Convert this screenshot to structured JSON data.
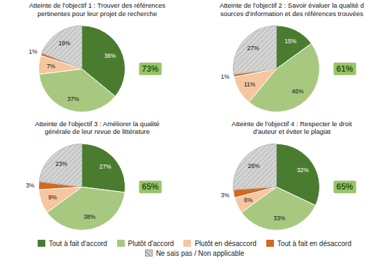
{
  "chart_data": [
    {
      "type": "pie",
      "title": "Atteinte de l'objectif 1 : Trouver des références\npertinentes pour leur projet de recherche",
      "categories": [
        "Tout à fait d'accord",
        "Plutôt d'accord",
        "Plutôt en désaccord",
        "Tout à fait en désaccord",
        "Ne sais pas / Non applicable"
      ],
      "values": [
        36,
        37,
        7,
        1,
        19
      ],
      "value_labels": [
        "36%",
        "37%",
        "7%",
        "1%",
        "19%"
      ],
      "colors": [
        "#4a7c2f",
        "#a8c880",
        "#f5c6a0",
        "#d2691e",
        "#d4d4d4"
      ],
      "data_labels": true,
      "legend": "bottom",
      "annotations": [
        {
          "text": "73%",
          "color": "#2d5a0e"
        }
      ]
    },
    {
      "type": "pie",
      "title": "Atteinte de l'objectif 2 : Savoir évaluer la qualité d\nsources d'information et des références trouvées",
      "categories": [
        "Tout à fait d'accord",
        "Plutôt d'accord",
        "Plutôt en désaccord",
        "Tout à fait en désaccord",
        "Ne sais pas / Non applicable"
      ],
      "values": [
        15,
        46,
        11,
        1,
        27
      ],
      "value_labels": [
        "15%",
        "46%",
        "11%",
        "1%",
        "27%"
      ],
      "colors": [
        "#4a7c2f",
        "#a8c880",
        "#f5c6a0",
        "#d2691e",
        "#d4d4d4"
      ],
      "data_labels": true,
      "legend": false,
      "annotations": [
        {
          "text": "61%",
          "color": "#2d5a0e"
        }
      ]
    },
    {
      "type": "pie",
      "title": "Atteinte de l'objectif 3 : Améliorer la qualité\ngénérale de leur revue de littérature",
      "categories": [
        "Tout à fait d'accord",
        "Plutôt d'accord",
        "Plutôt en désaccord",
        "Tout à fait en désaccord",
        "Ne sais pas / Non applicable"
      ],
      "values": [
        27,
        38,
        9,
        3,
        23
      ],
      "value_labels": [
        "27%",
        "38%",
        "9%",
        "3%",
        "23%"
      ],
      "colors": [
        "#4a7c2f",
        "#a8c880",
        "#f5c6a0",
        "#d2691e",
        "#d4d4d4"
      ],
      "data_labels": true,
      "legend": false,
      "annotations": [
        {
          "text": "65%",
          "color": "#2d5a0e"
        }
      ]
    },
    {
      "type": "pie",
      "title": "Atteinte de l'objectif 4 : Respecter le droit\nd'auteur et éviter le plagiat",
      "categories": [
        "Tout à fait d'accord",
        "Plutôt d'accord",
        "Plutôt en désaccord",
        "Tout à fait en désaccord",
        "Ne sais pas / Non applicable"
      ],
      "values": [
        32,
        33,
        6,
        3,
        26
      ],
      "value_labels": [
        "32%",
        "33%",
        "6%",
        "3%",
        "26%"
      ],
      "colors": [
        "#4a7c2f",
        "#a8c880",
        "#f5c6a0",
        "#d2691e",
        "#d4d4d4"
      ],
      "data_labels": true,
      "legend": false,
      "annotations": [
        {
          "text": "65%",
          "color": "#2d5a0e"
        }
      ]
    }
  ]
}
